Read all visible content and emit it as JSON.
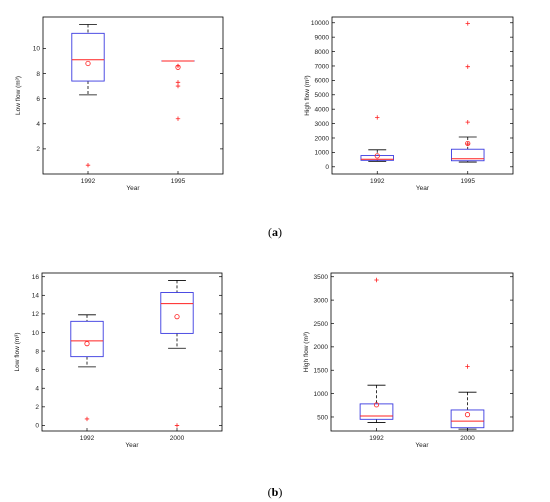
{
  "chart_data": [
    {
      "type": "box",
      "panel": "a",
      "categories": [
        "1992",
        "1995"
      ],
      "xlabel": "Year",
      "ylabel": "Low flow (m³)",
      "ylim": [
        0,
        12.5
      ],
      "yticks": [
        2,
        4,
        6,
        8,
        10
      ],
      "boxes": [
        {
          "category": "1992",
          "q1": 7.4,
          "median": 9.1,
          "q3": 11.2,
          "whisker_low": 6.3,
          "whisker_high": 11.9,
          "mean": 8.8,
          "outliers": [
            0.7
          ]
        },
        {
          "category": "1995",
          "q1": 9.0,
          "median": 9.0,
          "q3": 9.0,
          "whisker_low": 9.0,
          "whisker_high": 9.0,
          "mean": 8.5,
          "outliers": [
            8.6,
            7.3,
            7.0,
            4.4
          ]
        }
      ]
    },
    {
      "type": "box",
      "panel": "a",
      "categories": [
        "1992",
        "1995"
      ],
      "xlabel": "Year",
      "ylabel": "High flow (m³)",
      "ylim": [
        -500,
        10400
      ],
      "yticks": [
        0,
        1000,
        2000,
        3000,
        4000,
        5000,
        6000,
        7000,
        8000,
        9000,
        10000
      ],
      "boxes": [
        {
          "category": "1992",
          "q1": 450,
          "median": 520,
          "q3": 780,
          "whisker_low": 380,
          "whisker_high": 1180,
          "mean": 760,
          "outliers": [
            3430
          ]
        },
        {
          "category": "1995",
          "q1": 420,
          "median": 560,
          "q3": 1220,
          "whisker_low": 330,
          "whisker_high": 2070,
          "mean": 1620,
          "outliers": [
            9950,
            6950,
            3100,
            1580
          ]
        }
      ]
    },
    {
      "type": "box",
      "panel": "b",
      "categories": [
        "1992",
        "2000"
      ],
      "xlabel": "Year",
      "ylabel": "Low flow (m³)",
      "ylim": [
        -0.6,
        16.4
      ],
      "yticks": [
        0,
        2,
        4,
        6,
        8,
        10,
        12,
        14,
        16
      ],
      "boxes": [
        {
          "category": "1992",
          "q1": 7.4,
          "median": 9.1,
          "q3": 11.2,
          "whisker_low": 6.3,
          "whisker_high": 11.9,
          "mean": 8.8,
          "outliers": [
            0.7
          ]
        },
        {
          "category": "2000",
          "q1": 9.9,
          "median": 13.1,
          "q3": 14.3,
          "whisker_low": 8.3,
          "whisker_high": 15.6,
          "mean": 11.7,
          "outliers": [
            0.0
          ]
        }
      ]
    },
    {
      "type": "box",
      "panel": "b",
      "categories": [
        "1992",
        "2000"
      ],
      "xlabel": "Year",
      "ylabel": "High flow (m³)",
      "ylim": [
        200,
        3580
      ],
      "yticks": [
        500,
        1000,
        1500,
        2000,
        2500,
        3000,
        3500
      ],
      "boxes": [
        {
          "category": "1992",
          "q1": 450,
          "median": 520,
          "q3": 780,
          "whisker_low": 380,
          "whisker_high": 1180,
          "mean": 760,
          "outliers": [
            3430
          ]
        },
        {
          "category": "2000",
          "q1": 270,
          "median": 410,
          "q3": 650,
          "whisker_low": 240,
          "whisker_high": 1030,
          "mean": 550,
          "outliers": [
            1580
          ]
        }
      ]
    }
  ],
  "captions": {
    "a": {
      "open": "(",
      "letter": "a",
      "close": ")"
    },
    "b": {
      "open": "(",
      "letter": "b",
      "close": ")"
    }
  },
  "colors": {
    "box": "#3a3ae0",
    "median": "#ff2020",
    "whisker": "#000000",
    "outlier": "#ff2020",
    "mean": "#ff2020"
  }
}
